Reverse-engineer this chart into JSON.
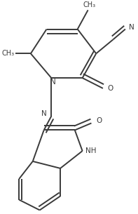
{
  "background_color": "#ffffff",
  "line_color": "#3a3a3a",
  "line_width": 1.4,
  "font_size": 7.5,
  "figsize": [
    1.97,
    3.05
  ],
  "dpi": 100,
  "xlim": [
    0,
    1
  ],
  "ylim": [
    0,
    1
  ]
}
